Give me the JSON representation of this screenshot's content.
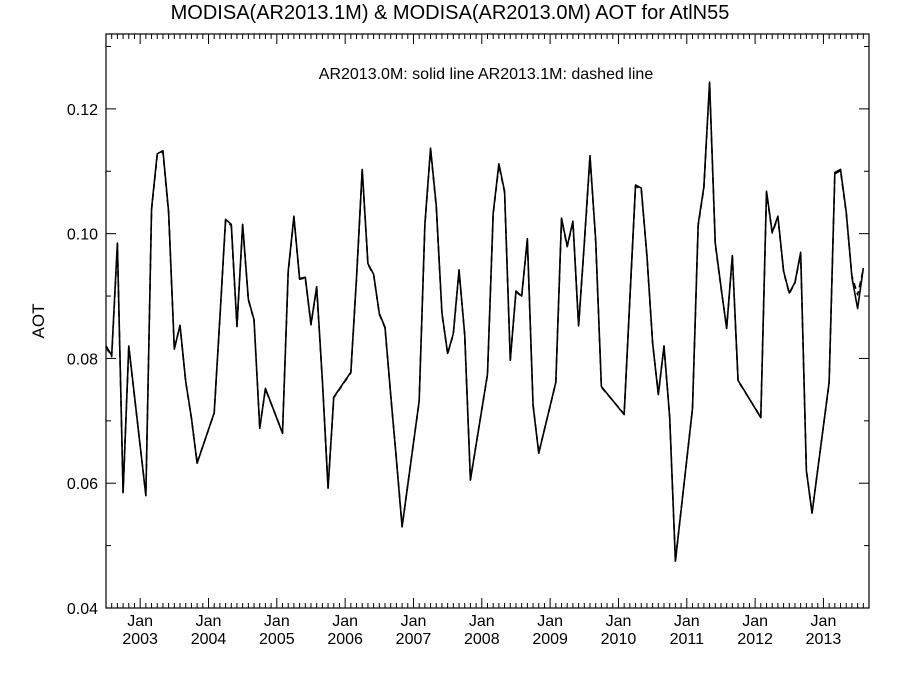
{
  "chart_data": {
    "type": "line",
    "title": "MODISA(AR2013.1M) & MODISA(AR2013.0M)  AOT for AtlN55",
    "xlabel": "",
    "ylabel": "AOT",
    "ylim": [
      0.04,
      0.132
    ],
    "xlim": [
      "2002-07-01",
      "2013-09-01"
    ],
    "grid": false,
    "legend_text": "AR2013.0M: solid line   AR2013.1M: dashed line",
    "legend_placement": "top-center",
    "y_ticks": [
      "0.04",
      "0.06",
      "0.08",
      "0.10",
      "0.12"
    ],
    "x_tick_month_label": "Jan",
    "x_tick_years": [
      "2003",
      "2004",
      "2005",
      "2006",
      "2007",
      "2008",
      "2009",
      "2010",
      "2011",
      "2012",
      "2013"
    ],
    "series": [
      {
        "name": "AR2013.0M",
        "style": "solid",
        "color": "#000000",
        "points": [
          [
            "2002-07-01",
            0.082
          ],
          [
            "2002-08-01",
            0.0805
          ],
          [
            "2002-09-01",
            0.0985
          ],
          [
            "2002-10-01",
            0.0585
          ],
          [
            "2002-11-01",
            0.082
          ],
          [
            "2003-02-01",
            0.058
          ],
          [
            "2003-03-01",
            0.104
          ],
          [
            "2003-04-01",
            0.1128
          ],
          [
            "2003-05-01",
            0.1133
          ],
          [
            "2003-06-01",
            0.1035
          ],
          [
            "2003-07-01",
            0.0815
          ],
          [
            "2003-08-01",
            0.0853
          ],
          [
            "2003-09-01",
            0.0763
          ],
          [
            "2003-10-01",
            0.0705
          ],
          [
            "2003-11-01",
            0.0632
          ],
          [
            "2004-02-01",
            0.0713
          ],
          [
            "2004-03-01",
            0.0865
          ],
          [
            "2004-04-01",
            0.1023
          ],
          [
            "2004-05-01",
            0.1015
          ],
          [
            "2004-06-01",
            0.0852
          ],
          [
            "2004-07-01",
            0.1015
          ],
          [
            "2004-08-01",
            0.0895
          ],
          [
            "2004-09-01",
            0.0862
          ],
          [
            "2004-10-01",
            0.0688
          ],
          [
            "2004-11-01",
            0.0752
          ],
          [
            "2005-02-01",
            0.068
          ],
          [
            "2005-03-01",
            0.094
          ],
          [
            "2005-04-01",
            0.1028
          ],
          [
            "2005-05-01",
            0.0928
          ],
          [
            "2005-06-01",
            0.093
          ],
          [
            "2005-07-01",
            0.0855
          ],
          [
            "2005-08-01",
            0.0915
          ],
          [
            "2005-09-01",
            0.0765
          ],
          [
            "2005-10-01",
            0.0592
          ],
          [
            "2005-11-01",
            0.0738
          ],
          [
            "2006-02-01",
            0.0778
          ],
          [
            "2006-03-01",
            0.093
          ],
          [
            "2006-04-01",
            0.1103
          ],
          [
            "2006-05-01",
            0.0952
          ],
          [
            "2006-06-01",
            0.0935
          ],
          [
            "2006-07-01",
            0.0872
          ],
          [
            "2006-08-01",
            0.085
          ],
          [
            "2006-09-01",
            0.0742
          ],
          [
            "2006-10-01",
            0.0638
          ],
          [
            "2006-11-01",
            0.053
          ],
          [
            "2007-02-01",
            0.0732
          ],
          [
            "2007-03-01",
            0.1015
          ],
          [
            "2007-04-01",
            0.1137
          ],
          [
            "2007-05-01",
            0.1045
          ],
          [
            "2007-06-01",
            0.0873
          ],
          [
            "2007-07-01",
            0.0808
          ],
          [
            "2007-08-01",
            0.084
          ],
          [
            "2007-09-01",
            0.0942
          ],
          [
            "2007-10-01",
            0.0838
          ],
          [
            "2007-11-01",
            0.0605
          ],
          [
            "2008-02-01",
            0.0775
          ],
          [
            "2008-03-01",
            0.1033
          ],
          [
            "2008-04-01",
            0.1112
          ],
          [
            "2008-05-01",
            0.1068
          ],
          [
            "2008-06-01",
            0.0797
          ],
          [
            "2008-07-01",
            0.0908
          ],
          [
            "2008-08-01",
            0.09
          ],
          [
            "2008-09-01",
            0.0992
          ],
          [
            "2008-10-01",
            0.0725
          ],
          [
            "2008-11-01",
            0.0648
          ],
          [
            "2009-02-01",
            0.0762
          ],
          [
            "2009-03-01",
            0.1025
          ],
          [
            "2009-04-01",
            0.098
          ],
          [
            "2009-05-01",
            0.102
          ],
          [
            "2009-06-01",
            0.0852
          ],
          [
            "2009-07-01",
            0.0985
          ],
          [
            "2009-08-01",
            0.1125
          ],
          [
            "2009-09-01",
            0.099
          ],
          [
            "2009-10-01",
            0.0755
          ],
          [
            "2010-02-01",
            0.071
          ],
          [
            "2010-03-01",
            0.0895
          ],
          [
            "2010-04-01",
            0.1078
          ],
          [
            "2010-05-01",
            0.1073
          ],
          [
            "2010-06-01",
            0.0965
          ],
          [
            "2010-07-01",
            0.0825
          ],
          [
            "2010-08-01",
            0.0742
          ],
          [
            "2010-09-01",
            0.082
          ],
          [
            "2010-10-01",
            0.0705
          ],
          [
            "2010-11-01",
            0.0475
          ],
          [
            "2011-02-01",
            0.072
          ],
          [
            "2011-03-01",
            0.1015
          ],
          [
            "2011-04-01",
            0.1075
          ],
          [
            "2011-05-01",
            0.1243
          ],
          [
            "2011-06-01",
            0.0985
          ],
          [
            "2011-07-01",
            0.0915
          ],
          [
            "2011-08-01",
            0.0848
          ],
          [
            "2011-09-01",
            0.0965
          ],
          [
            "2011-10-01",
            0.0765
          ],
          [
            "2012-02-01",
            0.0705
          ],
          [
            "2012-03-01",
            0.1068
          ],
          [
            "2012-04-01",
            0.1002
          ],
          [
            "2012-05-01",
            0.1028
          ],
          [
            "2012-06-01",
            0.094
          ],
          [
            "2012-07-01",
            0.0905
          ],
          [
            "2012-08-01",
            0.0922
          ],
          [
            "2012-09-01",
            0.097
          ],
          [
            "2012-10-01",
            0.062
          ],
          [
            "2012-11-01",
            0.0552
          ],
          [
            "2013-02-01",
            0.0762
          ],
          [
            "2013-03-01",
            0.1098
          ],
          [
            "2013-04-01",
            0.1103
          ],
          [
            "2013-05-01",
            0.1035
          ],
          [
            "2013-06-01",
            0.093
          ],
          [
            "2013-07-01",
            0.088
          ],
          [
            "2013-08-01",
            0.0945
          ]
        ]
      },
      {
        "name": "AR2013.1M",
        "style": "dashed",
        "color": "#000000",
        "points": [
          [
            "2002-07-01",
            0.0818
          ],
          [
            "2002-08-01",
            0.0803
          ],
          [
            "2002-09-01",
            0.0983
          ],
          [
            "2002-10-01",
            0.0586
          ],
          [
            "2002-11-01",
            0.0818
          ],
          [
            "2003-02-01",
            0.0581
          ],
          [
            "2003-03-01",
            0.1038
          ],
          [
            "2003-04-01",
            0.1126
          ],
          [
            "2003-05-01",
            0.1131
          ],
          [
            "2003-06-01",
            0.1033
          ],
          [
            "2003-07-01",
            0.0816
          ],
          [
            "2003-08-01",
            0.0852
          ],
          [
            "2003-09-01",
            0.0762
          ],
          [
            "2003-10-01",
            0.0704
          ],
          [
            "2003-11-01",
            0.0633
          ],
          [
            "2004-02-01",
            0.0712
          ],
          [
            "2004-03-01",
            0.0864
          ],
          [
            "2004-04-01",
            0.1021
          ],
          [
            "2004-05-01",
            0.1013
          ],
          [
            "2004-06-01",
            0.0851
          ],
          [
            "2004-07-01",
            0.1013
          ],
          [
            "2004-08-01",
            0.0894
          ],
          [
            "2004-09-01",
            0.0861
          ],
          [
            "2004-10-01",
            0.0689
          ],
          [
            "2004-11-01",
            0.0751
          ],
          [
            "2005-02-01",
            0.0681
          ],
          [
            "2005-03-01",
            0.0938
          ],
          [
            "2005-04-01",
            0.1026
          ],
          [
            "2005-05-01",
            0.0927
          ],
          [
            "2005-06-01",
            0.0929
          ],
          [
            "2005-07-01",
            0.0854
          ],
          [
            "2005-08-01",
            0.0913
          ],
          [
            "2005-09-01",
            0.0764
          ],
          [
            "2005-10-01",
            0.0593
          ],
          [
            "2005-11-01",
            0.0737
          ],
          [
            "2006-02-01",
            0.0777
          ],
          [
            "2006-03-01",
            0.0929
          ],
          [
            "2006-04-01",
            0.1101
          ],
          [
            "2006-05-01",
            0.0951
          ],
          [
            "2006-06-01",
            0.0934
          ],
          [
            "2006-07-01",
            0.0871
          ],
          [
            "2006-08-01",
            0.0849
          ],
          [
            "2006-09-01",
            0.0741
          ],
          [
            "2006-10-01",
            0.0639
          ],
          [
            "2006-11-01",
            0.0531
          ],
          [
            "2007-02-01",
            0.0731
          ],
          [
            "2007-03-01",
            0.1013
          ],
          [
            "2007-04-01",
            0.1135
          ],
          [
            "2007-05-01",
            0.1043
          ],
          [
            "2007-06-01",
            0.0872
          ],
          [
            "2007-07-01",
            0.0807
          ],
          [
            "2007-08-01",
            0.0839
          ],
          [
            "2007-09-01",
            0.094
          ],
          [
            "2007-10-01",
            0.0837
          ],
          [
            "2007-11-01",
            0.0606
          ],
          [
            "2008-02-01",
            0.0774
          ],
          [
            "2008-03-01",
            0.1031
          ],
          [
            "2008-04-01",
            0.111
          ],
          [
            "2008-05-01",
            0.1066
          ],
          [
            "2008-06-01",
            0.0798
          ],
          [
            "2008-07-01",
            0.0907
          ],
          [
            "2008-08-01",
            0.0899
          ],
          [
            "2008-09-01",
            0.099
          ],
          [
            "2008-10-01",
            0.0726
          ],
          [
            "2008-11-01",
            0.0649
          ],
          [
            "2009-02-01",
            0.0761
          ],
          [
            "2009-03-01",
            0.1023
          ],
          [
            "2009-04-01",
            0.0979
          ],
          [
            "2009-05-01",
            0.1018
          ],
          [
            "2009-06-01",
            0.0853
          ],
          [
            "2009-07-01",
            0.0983
          ],
          [
            "2009-08-01",
            0.1123
          ],
          [
            "2009-09-01",
            0.0988
          ],
          [
            "2009-10-01",
            0.0754
          ],
          [
            "2010-02-01",
            0.0711
          ],
          [
            "2010-03-01",
            0.0894
          ],
          [
            "2010-04-01",
            0.1076
          ],
          [
            "2010-05-01",
            0.1071
          ],
          [
            "2010-06-01",
            0.0964
          ],
          [
            "2010-07-01",
            0.0824
          ],
          [
            "2010-08-01",
            0.0743
          ],
          [
            "2010-09-01",
            0.0819
          ],
          [
            "2010-10-01",
            0.0706
          ],
          [
            "2010-11-01",
            0.0476
          ],
          [
            "2011-02-01",
            0.0719
          ],
          [
            "2011-03-01",
            0.1013
          ],
          [
            "2011-04-01",
            0.1073
          ],
          [
            "2011-05-01",
            0.1241
          ],
          [
            "2011-06-01",
            0.0983
          ],
          [
            "2011-07-01",
            0.0914
          ],
          [
            "2011-08-01",
            0.0849
          ],
          [
            "2011-09-01",
            0.0963
          ],
          [
            "2011-10-01",
            0.0764
          ],
          [
            "2012-02-01",
            0.0706
          ],
          [
            "2012-03-01",
            0.1066
          ],
          [
            "2012-04-01",
            0.1001
          ],
          [
            "2012-05-01",
            0.1026
          ],
          [
            "2012-06-01",
            0.0939
          ],
          [
            "2012-07-01",
            0.0904
          ],
          [
            "2012-08-01",
            0.0921
          ],
          [
            "2012-09-01",
            0.0968
          ],
          [
            "2012-10-01",
            0.0621
          ],
          [
            "2012-11-01",
            0.0553
          ],
          [
            "2013-02-01",
            0.0761
          ],
          [
            "2013-03-01",
            0.1096
          ],
          [
            "2013-04-01",
            0.1101
          ],
          [
            "2013-05-01",
            0.1033
          ],
          [
            "2013-06-01",
            0.0932
          ],
          [
            "2013-07-01",
            0.0902
          ],
          [
            "2013-08-01",
            0.0943
          ]
        ]
      }
    ]
  }
}
